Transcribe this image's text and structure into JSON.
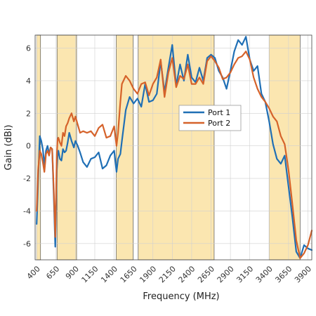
{
  "chart_data": {
    "type": "line",
    "xlabel": "Frequency (MHz)",
    "ylabel": "Gain (dBi)",
    "xlim": [
      380,
      3950
    ],
    "ylim": [
      -7,
      6.8
    ],
    "xticks": [
      400,
      650,
      900,
      1150,
      1400,
      1650,
      1900,
      2150,
      2400,
      2650,
      2900,
      3150,
      3400,
      3650,
      3900
    ],
    "yticks": [
      -6,
      -4,
      -2,
      0,
      2,
      4,
      6
    ],
    "grid": true,
    "legend_position": "center-right",
    "shaded_bands": [
      {
        "x0": 400,
        "x1": 450
      },
      {
        "x0": 663,
        "x1": 915
      },
      {
        "x0": 1427,
        "x1": 1645
      },
      {
        "x0": 1710,
        "x1": 2690
      },
      {
        "x0": 3400,
        "x1": 3800
      }
    ],
    "band_color": "#fbe6b0",
    "band_overlap_color": "#efd593",
    "series": [
      {
        "name": "Port 1",
        "color": "#1f6fb5",
        "x": [
          400,
          420,
          440,
          460,
          480,
          500,
          520,
          540,
          560,
          580,
          600,
          620,
          640,
          660,
          670,
          680,
          700,
          720,
          740,
          760,
          780,
          800,
          820,
          850,
          880,
          900,
          930,
          960,
          1000,
          1050,
          1100,
          1150,
          1200,
          1250,
          1300,
          1350,
          1400,
          1430,
          1450,
          1480,
          1500,
          1550,
          1600,
          1650,
          1700,
          1750,
          1800,
          1850,
          1900,
          1950,
          2000,
          2050,
          2100,
          2150,
          2200,
          2250,
          2300,
          2350,
          2400,
          2450,
          2500,
          2550,
          2600,
          2650,
          2700,
          2750,
          2800,
          2850,
          2900,
          2950,
          3000,
          3050,
          3100,
          3150,
          3200,
          3250,
          3300,
          3350,
          3400,
          3450,
          3500,
          3550,
          3600,
          3650,
          3700,
          3750,
          3800,
          3850,
          3900,
          3950
        ],
        "y": [
          -4.8,
          -2,
          0.6,
          0.3,
          -0.2,
          -1.2,
          -0.3,
          0,
          -0.5,
          -0.1,
          -0.2,
          -3,
          -6.2,
          -1.5,
          -0.6,
          -0.3,
          -0.8,
          -0.9,
          -0.2,
          -0.4,
          -0.3,
          0.2,
          0.8,
          0.3,
          -0.1,
          0.3,
          0,
          -0.4,
          -1,
          -1.3,
          -0.8,
          -0.7,
          -0.4,
          -1.4,
          -1.2,
          -0.6,
          -0.3,
          -1.6,
          -0.8,
          -0.5,
          0.3,
          2.2,
          3,
          2.6,
          2.9,
          2.4,
          3.8,
          2.7,
          2.8,
          3.2,
          5.2,
          3.3,
          4.8,
          6.2,
          3.7,
          5,
          4,
          5.6,
          4.2,
          3.9,
          4.8,
          4,
          5.4,
          5.6,
          5.4,
          4.6,
          4.2,
          3.5,
          4.6,
          5.8,
          6.5,
          6.2,
          6.7,
          5.3,
          4.6,
          4.9,
          3.2,
          2.7,
          1.5,
          0.1,
          -0.8,
          -1.1,
          -0.6,
          -2.5,
          -4.4,
          -6.5,
          -6.9,
          -6.1,
          -6.3,
          -6.4
        ]
      },
      {
        "name": "Port 2",
        "color": "#d5622a",
        "x": [
          400,
          420,
          440,
          460,
          480,
          500,
          520,
          540,
          560,
          580,
          600,
          620,
          640,
          660,
          670,
          680,
          700,
          720,
          740,
          760,
          780,
          800,
          820,
          850,
          880,
          900,
          930,
          960,
          1000,
          1050,
          1100,
          1150,
          1200,
          1250,
          1300,
          1350,
          1400,
          1430,
          1450,
          1480,
          1500,
          1550,
          1600,
          1650,
          1700,
          1750,
          1800,
          1850,
          1900,
          1950,
          2000,
          2050,
          2100,
          2150,
          2200,
          2250,
          2300,
          2350,
          2400,
          2450,
          2500,
          2550,
          2600,
          2650,
          2700,
          2750,
          2800,
          2850,
          2900,
          2950,
          3000,
          3050,
          3100,
          3150,
          3200,
          3250,
          3300,
          3350,
          3400,
          3450,
          3500,
          3550,
          3600,
          3650,
          3700,
          3750,
          3800,
          3850,
          3900,
          3950
        ],
        "y": [
          -4,
          -1.5,
          -0.3,
          -0.5,
          -1,
          -1.6,
          -0.5,
          -0.3,
          -0.6,
          -0.1,
          -0.2,
          -2.6,
          -5.6,
          -0.6,
          0.4,
          0.5,
          0.2,
          0,
          0.8,
          0.6,
          1.2,
          1.4,
          1.7,
          2,
          1.5,
          1.8,
          1.3,
          0.8,
          0.9,
          0.8,
          0.9,
          0.6,
          1.1,
          1.3,
          0.5,
          0.6,
          1.2,
          0,
          0.8,
          2.7,
          3.8,
          4.3,
          4,
          3.5,
          3.2,
          3.8,
          3.9,
          3.1,
          3.8,
          4.2,
          5.3,
          3,
          4.5,
          5.4,
          3.6,
          4.3,
          4.1,
          5,
          3.8,
          3.8,
          4.2,
          3.8,
          5.2,
          5.5,
          5.2,
          4.8,
          4.1,
          4.2,
          4.5,
          5,
          5.4,
          5.5,
          5.8,
          5.3,
          4.2,
          3.5,
          3,
          2.7,
          2.3,
          1.8,
          1.5,
          0.6,
          0.1,
          -1.5,
          -3.6,
          -5.8,
          -6.9,
          -6.6,
          -6.1,
          -5.2
        ]
      }
    ]
  }
}
